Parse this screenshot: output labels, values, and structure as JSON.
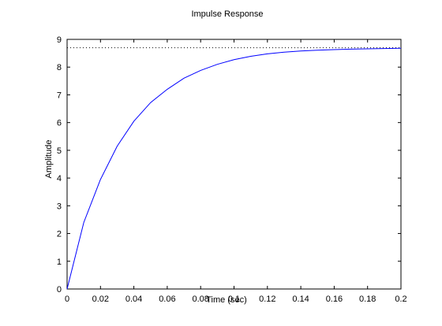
{
  "chart_data": {
    "type": "line",
    "title": "Impulse Response",
    "xlabel": "Time (sec)",
    "ylabel": "Amplitude",
    "xlim": [
      0,
      0.2
    ],
    "ylim": [
      0,
      9
    ],
    "x_ticks": [
      0,
      0.02,
      0.04,
      0.06,
      0.08,
      0.1,
      0.12,
      0.14,
      0.16,
      0.18,
      0.2
    ],
    "x_tick_labels": [
      "0",
      "0.02",
      "0.04",
      "0.06",
      "0.08",
      "0.1",
      "0.12",
      "0.14",
      "0.16",
      "0.18",
      "0.2"
    ],
    "y_ticks": [
      0,
      1,
      2,
      3,
      4,
      5,
      6,
      7,
      8,
      9
    ],
    "y_tick_labels": [
      "0",
      "1",
      "2",
      "3",
      "4",
      "5",
      "6",
      "7",
      "8",
      "9"
    ],
    "grid": false,
    "series": [
      {
        "line_color": "#0000ff",
        "x": [
          0,
          0.01,
          0.02,
          0.03,
          0.04,
          0.05,
          0.06,
          0.07,
          0.08,
          0.09,
          0.1,
          0.11,
          0.12,
          0.13,
          0.14,
          0.15,
          0.16,
          0.17,
          0.18,
          0.19,
          0.2
        ],
        "y": [
          0,
          2.4,
          3.95,
          5.15,
          6.05,
          6.72,
          7.2,
          7.6,
          7.88,
          8.1,
          8.27,
          8.39,
          8.48,
          8.54,
          8.58,
          8.61,
          8.63,
          8.65,
          8.66,
          8.67,
          8.68
        ]
      }
    ],
    "reference_line": {
      "y": 8.7,
      "style": "dotted",
      "color": "#000000"
    }
  }
}
